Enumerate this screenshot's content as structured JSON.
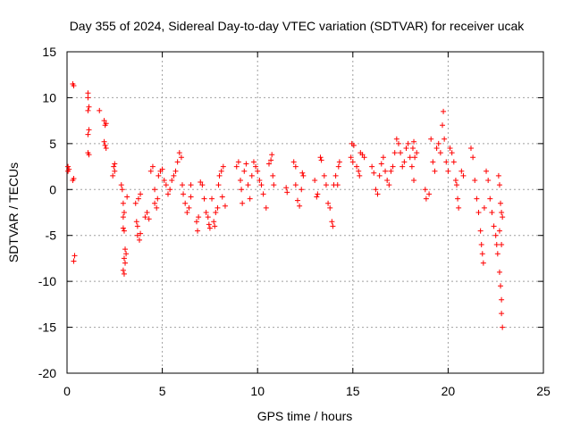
{
  "chart_data": {
    "type": "scatter",
    "title": "Day 355 of 2024, Sidereal Day-to-day VTEC variation (SDTVAR) for receiver ucak",
    "xlabel": "GPS time / hours",
    "ylabel": "SDTVAR / TECUs",
    "xlim": [
      0,
      25
    ],
    "ylim": [
      -20,
      15
    ],
    "xticks": [
      0,
      5,
      10,
      15,
      20,
      25
    ],
    "yticks": [
      -20,
      -15,
      -10,
      -5,
      0,
      5,
      10,
      15
    ],
    "xtick_labels": [
      "0",
      "5",
      "10",
      "15",
      "20",
      "25"
    ],
    "ytick_labels": [
      "-20",
      "-15",
      "-10",
      "-5",
      "0",
      "5",
      "10",
      "15"
    ],
    "grid": true,
    "marker": "+",
    "marker_color": "#ff0000",
    "series": [
      {
        "name": "SDTVAR",
        "points": [
          [
            0.05,
            2.5
          ],
          [
            0.05,
            2.0
          ],
          [
            0.1,
            2.2
          ],
          [
            0.3,
            11.5
          ],
          [
            0.35,
            11.3
          ],
          [
            0.3,
            1.0
          ],
          [
            0.35,
            1.2
          ],
          [
            0.4,
            -7.2
          ],
          [
            0.35,
            -7.8
          ],
          [
            1.1,
            10.5
          ],
          [
            1.1,
            10.0
          ],
          [
            1.15,
            9.0
          ],
          [
            1.1,
            8.6
          ],
          [
            1.15,
            6.5
          ],
          [
            1.1,
            6.0
          ],
          [
            1.1,
            4.0
          ],
          [
            1.15,
            3.8
          ],
          [
            1.7,
            8.6
          ],
          [
            1.95,
            7.5
          ],
          [
            2.0,
            7.0
          ],
          [
            2.05,
            7.2
          ],
          [
            1.95,
            5.2
          ],
          [
            2.0,
            4.8
          ],
          [
            2.05,
            4.5
          ],
          [
            2.45,
            2.5
          ],
          [
            2.5,
            2.0
          ],
          [
            2.4,
            1.5
          ],
          [
            2.5,
            2.8
          ],
          [
            2.85,
            0.5
          ],
          [
            2.9,
            0.0
          ],
          [
            2.95,
            -1.5
          ],
          [
            3.0,
            -2.5
          ],
          [
            2.95,
            -3.0
          ],
          [
            3.0,
            -4.5
          ],
          [
            2.95,
            -4.2
          ],
          [
            3.05,
            -6.5
          ],
          [
            3.0,
            -7.5
          ],
          [
            3.05,
            -8.0
          ],
          [
            2.95,
            -8.8
          ],
          [
            3.0,
            -9.2
          ],
          [
            3.1,
            -7.0
          ],
          [
            3.15,
            -0.8
          ],
          [
            3.6,
            -1.5
          ],
          [
            3.65,
            -3.5
          ],
          [
            3.7,
            -4.0
          ],
          [
            3.7,
            -5.0
          ],
          [
            3.8,
            -5.5
          ],
          [
            3.85,
            -4.8
          ],
          [
            3.75,
            -1.0
          ],
          [
            3.85,
            -0.5
          ],
          [
            4.1,
            -3.0
          ],
          [
            4.2,
            -2.5
          ],
          [
            4.3,
            -3.2
          ],
          [
            4.4,
            2.0
          ],
          [
            4.5,
            2.5
          ],
          [
            4.6,
            0.0
          ],
          [
            4.6,
            -1.5
          ],
          [
            4.7,
            -2.0
          ],
          [
            4.75,
            -1.0
          ],
          [
            4.8,
            1.5
          ],
          [
            4.9,
            2.0
          ],
          [
            5.0,
            2.2
          ],
          [
            5.1,
            1.0
          ],
          [
            5.2,
            0.5
          ],
          [
            5.3,
            -0.5
          ],
          [
            5.4,
            0.0
          ],
          [
            5.5,
            1.0
          ],
          [
            5.6,
            1.5
          ],
          [
            5.7,
            2.0
          ],
          [
            5.8,
            3.0
          ],
          [
            5.9,
            4.0
          ],
          [
            6.0,
            3.5
          ],
          [
            6.05,
            0.5
          ],
          [
            6.1,
            -0.5
          ],
          [
            6.2,
            -1.5
          ],
          [
            6.3,
            -2.5
          ],
          [
            6.4,
            -2.0
          ],
          [
            6.5,
            0.5
          ],
          [
            6.5,
            -0.8
          ],
          [
            6.8,
            -3.5
          ],
          [
            6.85,
            -4.5
          ],
          [
            6.9,
            -3.0
          ],
          [
            7.0,
            0.8
          ],
          [
            7.1,
            0.5
          ],
          [
            7.2,
            -1.0
          ],
          [
            7.3,
            -2.5
          ],
          [
            7.4,
            -3.0
          ],
          [
            7.45,
            -3.8
          ],
          [
            7.5,
            -4.2
          ],
          [
            7.6,
            -1.0
          ],
          [
            7.7,
            -3.5
          ],
          [
            7.75,
            -4.0
          ],
          [
            7.8,
            -2.5
          ],
          [
            7.9,
            -2.0
          ],
          [
            7.95,
            0.5
          ],
          [
            8.0,
            1.5
          ],
          [
            8.1,
            2.0
          ],
          [
            8.2,
            2.5
          ],
          [
            8.15,
            -0.8
          ],
          [
            8.3,
            -1.8
          ],
          [
            8.9,
            2.5
          ],
          [
            9.0,
            3.0
          ],
          [
            9.1,
            1.0
          ],
          [
            9.15,
            0.0
          ],
          [
            9.2,
            -1.5
          ],
          [
            9.3,
            2.0
          ],
          [
            9.4,
            2.8
          ],
          [
            9.5,
            0.5
          ],
          [
            9.6,
            -1.0
          ],
          [
            9.7,
            1.5
          ],
          [
            9.8,
            3.0
          ],
          [
            9.9,
            2.5
          ],
          [
            10.0,
            2.0
          ],
          [
            10.1,
            1.0
          ],
          [
            10.2,
            0.5
          ],
          [
            10.3,
            -0.5
          ],
          [
            10.45,
            -2.0
          ],
          [
            10.6,
            2.8
          ],
          [
            10.7,
            3.2
          ],
          [
            10.75,
            3.8
          ],
          [
            10.8,
            1.5
          ],
          [
            10.85,
            0.5
          ],
          [
            11.5,
            0.2
          ],
          [
            11.55,
            -0.3
          ],
          [
            11.9,
            3.0
          ],
          [
            12.0,
            2.5
          ],
          [
            12.0,
            0.5
          ],
          [
            12.1,
            -1.2
          ],
          [
            12.2,
            -1.8
          ],
          [
            12.3,
            0.0
          ],
          [
            12.35,
            1.8
          ],
          [
            12.4,
            1.5
          ],
          [
            13.0,
            1.0
          ],
          [
            13.1,
            -0.8
          ],
          [
            13.15,
            -0.5
          ],
          [
            13.3,
            3.5
          ],
          [
            13.35,
            3.2
          ],
          [
            13.5,
            1.5
          ],
          [
            13.6,
            0.5
          ],
          [
            13.7,
            -1.5
          ],
          [
            13.8,
            -2.0
          ],
          [
            13.9,
            -3.5
          ],
          [
            13.95,
            -4.0
          ],
          [
            14.0,
            0.5
          ],
          [
            14.1,
            1.5
          ],
          [
            14.2,
            0.5
          ],
          [
            14.25,
            2.5
          ],
          [
            14.3,
            3.0
          ],
          [
            14.9,
            3.5
          ],
          [
            15.0,
            3.0
          ],
          [
            14.95,
            5.0
          ],
          [
            15.05,
            4.8
          ],
          [
            15.2,
            2.5
          ],
          [
            15.3,
            2.0
          ],
          [
            15.35,
            1.5
          ],
          [
            15.4,
            4.0
          ],
          [
            15.5,
            3.8
          ],
          [
            15.6,
            3.5
          ],
          [
            16.0,
            2.5
          ],
          [
            16.1,
            1.8
          ],
          [
            16.2,
            0.0
          ],
          [
            16.3,
            -0.5
          ],
          [
            16.4,
            1.5
          ],
          [
            16.5,
            2.8
          ],
          [
            16.6,
            3.5
          ],
          [
            16.7,
            2.0
          ],
          [
            16.8,
            1.0
          ],
          [
            16.9,
            0.5
          ],
          [
            17.0,
            2.0
          ],
          [
            17.1,
            2.5
          ],
          [
            17.2,
            4.0
          ],
          [
            17.3,
            5.5
          ],
          [
            17.4,
            5.0
          ],
          [
            17.5,
            4.0
          ],
          [
            17.6,
            2.5
          ],
          [
            17.7,
            3.0
          ],
          [
            17.8,
            4.5
          ],
          [
            17.9,
            5.0
          ],
          [
            18.0,
            3.5
          ],
          [
            18.1,
            2.5
          ],
          [
            18.15,
            4.5
          ],
          [
            18.2,
            5.2
          ],
          [
            18.2,
            1.0
          ],
          [
            18.25,
            3.5
          ],
          [
            18.35,
            4.0
          ],
          [
            18.8,
            0.0
          ],
          [
            18.85,
            -1.0
          ],
          [
            19.0,
            -0.5
          ],
          [
            19.1,
            5.5
          ],
          [
            19.2,
            3.0
          ],
          [
            19.3,
            2.0
          ],
          [
            19.4,
            4.5
          ],
          [
            19.5,
            5.0
          ],
          [
            19.6,
            4.0
          ],
          [
            19.7,
            7.0
          ],
          [
            19.75,
            8.5
          ],
          [
            19.8,
            5.5
          ],
          [
            19.9,
            3.0
          ],
          [
            20.0,
            2.0
          ],
          [
            20.1,
            4.5
          ],
          [
            20.2,
            4.0
          ],
          [
            20.3,
            3.0
          ],
          [
            20.4,
            1.0
          ],
          [
            20.45,
            0.5
          ],
          [
            20.5,
            -1.0
          ],
          [
            20.55,
            -2.0
          ],
          [
            20.7,
            2.0
          ],
          [
            20.8,
            1.5
          ],
          [
            21.2,
            4.5
          ],
          [
            21.3,
            3.5
          ],
          [
            21.4,
            1.0
          ],
          [
            21.5,
            -1.0
          ],
          [
            21.6,
            -2.5
          ],
          [
            21.7,
            -4.5
          ],
          [
            21.75,
            -6.0
          ],
          [
            21.8,
            -7.0
          ],
          [
            21.85,
            -8.0
          ],
          [
            21.9,
            -2.0
          ],
          [
            22.0,
            2.0
          ],
          [
            22.1,
            1.0
          ],
          [
            22.2,
            -1.0
          ],
          [
            22.3,
            -2.5
          ],
          [
            22.4,
            -4.0
          ],
          [
            22.5,
            -5.0
          ],
          [
            22.55,
            -6.0
          ],
          [
            22.6,
            -7.0
          ],
          [
            22.7,
            -9.0
          ],
          [
            22.75,
            -10.5
          ],
          [
            22.8,
            -12.0
          ],
          [
            22.8,
            -13.5
          ],
          [
            22.85,
            -15.0
          ],
          [
            22.65,
            1.5
          ],
          [
            22.7,
            0.5
          ],
          [
            22.75,
            -1.5
          ],
          [
            22.8,
            -2.5
          ],
          [
            22.85,
            -3.0
          ],
          [
            22.7,
            -4.5
          ],
          [
            22.8,
            -6.0
          ]
        ]
      }
    ]
  }
}
